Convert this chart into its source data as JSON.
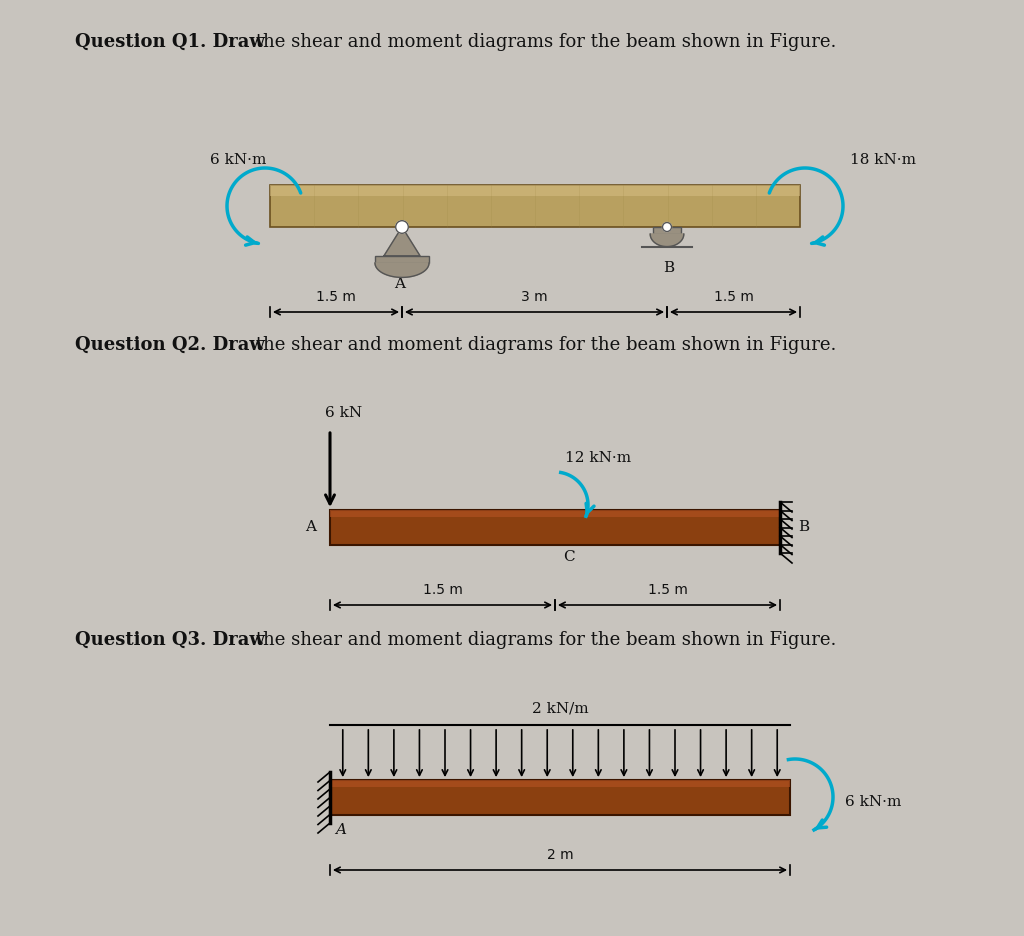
{
  "background_color": "#c8c4be",
  "title_q1_bold": "Question Q1. Draw",
  "title_q1_rest": " the shear and moment diagrams for the beam shown in Figure.",
  "title_q2_bold": "Question Q2. Draw",
  "title_q2_rest": " the shear and moment diagrams for the beam shown in Figure.",
  "title_q3_bold": "Question Q3. Draw",
  "title_q3_rest": " the shear and moment diagrams for the beam shown in Figure.",
  "q1_moment_left": "6 kN·m",
  "q1_moment_right": "18 kN·m",
  "q1_dim1": "1.5 m",
  "q1_dim2": "3 m",
  "q1_dim3": "1.5 m",
  "q1_label_A": "A",
  "q1_label_B": "B",
  "q2_force": "6 kN",
  "q2_moment": "12 kN·m",
  "q2_dim1": "1.5 m",
  "q2_dim2": "1.5 m",
  "q2_label_A": "A",
  "q2_label_B": "B",
  "q2_label_C": "C",
  "q3_load": "2 kN/m",
  "q3_moment": "6 kN·m",
  "q3_dim": "2 m",
  "q3_label_A": "A",
  "beam_color_q1": "#b8a060",
  "beam_color_q1_edge": "#6a5020",
  "beam_color_q2": "#8b4010",
  "beam_color_q2_edge": "#3a1500",
  "beam_highlight_q1": "#d4bc80",
  "beam_highlight_q2": "#b05020",
  "moment_arrow_color": "#00aacc",
  "force_arrow_color": "#000000",
  "text_color": "#111111",
  "support_color": "#999080",
  "support_edge": "#555555"
}
